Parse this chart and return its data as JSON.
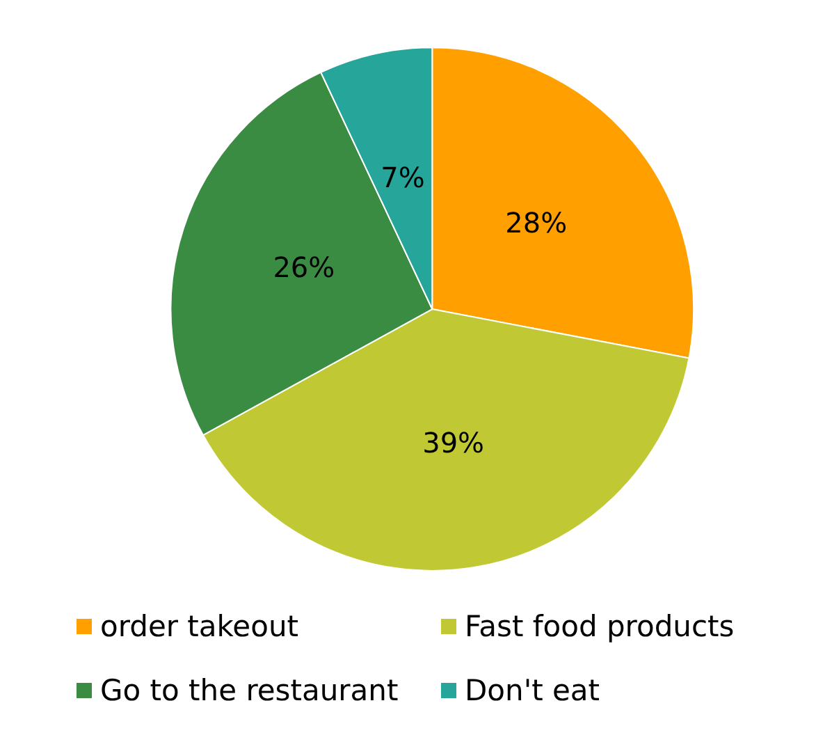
{
  "chart_data": {
    "type": "pie",
    "categories": [
      "order takeout",
      "Fast food products",
      "Go to the restaurant",
      "Don't eat"
    ],
    "values": [
      28,
      39,
      26,
      7
    ],
    "colors": [
      "#ffa000",
      "#c0c934",
      "#3b8c43",
      "#26a69a"
    ],
    "value_labels": [
      "28%",
      "39%",
      "26%",
      "7%"
    ],
    "legend": "bottom"
  }
}
